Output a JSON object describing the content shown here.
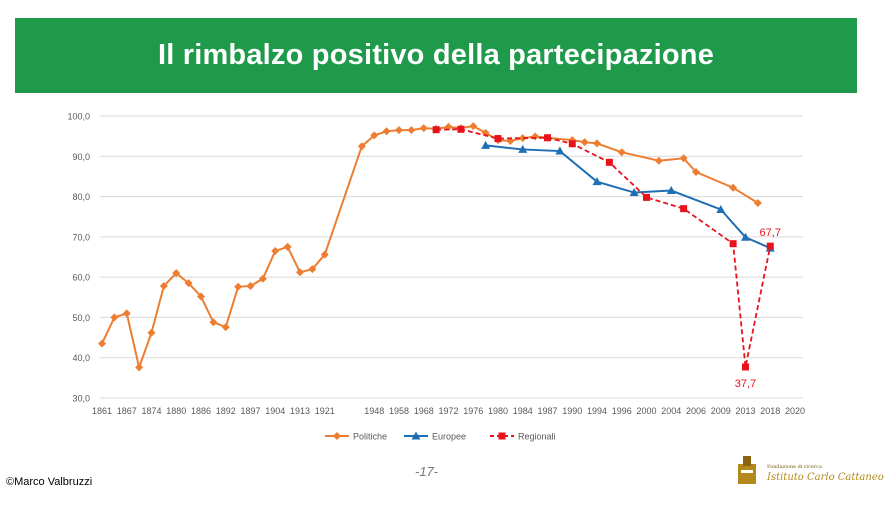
{
  "title": "Il rimbalzo positivo della partecipazione",
  "footer": {
    "credit": "©Marco Valbruzzi",
    "page": "-17-",
    "logo_small": "Fondazione di ricerca",
    "logo_name": "Istituto Carlo Cattaneo"
  },
  "chart_data": {
    "type": "line",
    "ylim": [
      30,
      100
    ],
    "yticks": [
      "30,0",
      "40,0",
      "50,0",
      "60,0",
      "70,0",
      "80,0",
      "90,0",
      "100,0"
    ],
    "xtick_labels": [
      "1861",
      "1867",
      "1874",
      "1880",
      "1886",
      "1892",
      "1897",
      "1904",
      "1913",
      "1921",
      "",
      "1948",
      "1958",
      "1968",
      "1972",
      "1976",
      "1980",
      "1984",
      "1987",
      "1990",
      "1994",
      "1996",
      "2000",
      "2004",
      "2006",
      "2009",
      "2013",
      "2018",
      "2020"
    ],
    "grid": true,
    "legend_position": "bottom",
    "colors": {
      "politiche": "#ed7d31",
      "europee": "#1f6fb5",
      "regionali": "#e8121a"
    },
    "series": [
      {
        "name": "Politiche",
        "style": "solid-diamond",
        "points": [
          [
            0,
            43.5
          ],
          [
            0.5,
            50
          ],
          [
            1,
            51
          ],
          [
            1.5,
            37.6
          ],
          [
            2,
            46.2
          ],
          [
            2.5,
            57.8
          ],
          [
            3,
            61
          ],
          [
            3.5,
            58.5
          ],
          [
            4,
            55.2
          ],
          [
            4.5,
            48.8
          ],
          [
            5,
            47.6
          ],
          [
            5.5,
            57.6
          ],
          [
            6,
            57.8
          ],
          [
            6.5,
            59.6
          ],
          [
            7,
            66.5
          ],
          [
            7.5,
            67.5
          ],
          [
            8,
            61.2
          ],
          [
            8.5,
            62
          ],
          [
            9,
            65.6
          ],
          [
            10.5,
            92.5
          ],
          [
            11,
            95.2
          ],
          [
            11.5,
            96.2
          ],
          [
            12,
            96.5
          ],
          [
            12.5,
            96.5
          ],
          [
            13,
            97
          ],
          [
            13.5,
            96.8
          ],
          [
            14,
            97.3
          ],
          [
            14.5,
            97
          ],
          [
            15,
            97.5
          ],
          [
            15.5,
            95.8
          ],
          [
            16,
            94
          ],
          [
            16.5,
            93.8
          ],
          [
            17,
            94.5
          ],
          [
            17.5,
            94.9
          ],
          [
            18,
            94.6
          ],
          [
            19,
            94
          ],
          [
            19.5,
            93.5
          ],
          [
            20,
            93.2
          ],
          [
            21,
            91
          ],
          [
            22.5,
            88.9
          ],
          [
            23.5,
            89.5
          ],
          [
            24,
            86.1
          ],
          [
            25.5,
            82.2
          ],
          [
            26.5,
            78.4
          ]
        ]
      },
      {
        "name": "Europee",
        "style": "solid-triangle",
        "points": [
          [
            15.5,
            92.7
          ],
          [
            17,
            91.7
          ],
          [
            18.5,
            91.3
          ],
          [
            20,
            83.7
          ],
          [
            21.5,
            81
          ],
          [
            23,
            81.5
          ],
          [
            25,
            76.8
          ],
          [
            26,
            69.9
          ],
          [
            27,
            67.2
          ]
        ]
      },
      {
        "name": "Regionali",
        "style": "dashed-square",
        "points": [
          [
            13.5,
            96.6
          ],
          [
            14.5,
            96.7
          ],
          [
            16,
            94.4
          ],
          [
            18,
            94.6
          ],
          [
            19,
            93.1
          ],
          [
            20.5,
            88.5
          ],
          [
            22,
            79.8
          ],
          [
            23.5,
            77
          ],
          [
            25.5,
            68.3
          ],
          [
            26,
            37.7
          ],
          [
            27,
            67.7
          ]
        ]
      }
    ],
    "annotations": [
      {
        "text": "67,7",
        "at": [
          27,
          67.7
        ],
        "placement": "above"
      },
      {
        "text": "37,7",
        "at": [
          26,
          37.7
        ],
        "placement": "below"
      }
    ]
  }
}
